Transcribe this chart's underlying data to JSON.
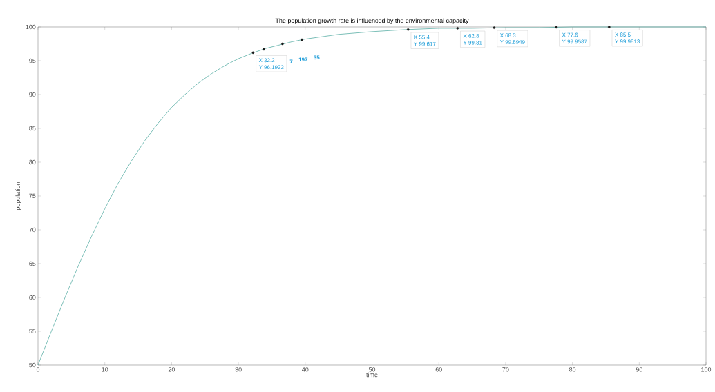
{
  "chart_data": {
    "type": "line",
    "title": "The population growth rate is influenced by the environmental capacity",
    "xlabel": "time",
    "ylabel": "population",
    "xlim": [
      0,
      100
    ],
    "xticks": [
      0,
      10,
      20,
      30,
      40,
      50,
      60,
      70,
      80,
      90,
      100
    ],
    "ylim": [
      50,
      100
    ],
    "yticks": [
      50,
      55,
      60,
      65,
      70,
      75,
      80,
      85,
      90,
      95,
      100
    ],
    "series": [
      {
        "color": "#5aaea6",
        "marker": "none",
        "x": [
          0,
          2,
          4,
          6,
          8,
          10,
          12,
          14,
          16,
          18,
          20,
          22,
          24,
          26,
          28,
          30,
          32,
          34,
          36,
          38,
          40,
          45,
          50,
          55,
          60,
          65,
          70,
          75,
          80,
          90,
          100
        ],
        "values": [
          50,
          55.0,
          59.9,
          64.6,
          69.0,
          73.1,
          76.9,
          80.2,
          83.2,
          85.8,
          88.1,
          90.0,
          91.7,
          93.1,
          94.3,
          95.3,
          96.1,
          96.8,
          97.3,
          97.8,
          98.2,
          98.9,
          99.3,
          99.6,
          99.8,
          99.8,
          99.9,
          99.9,
          100,
          100,
          100
        ]
      },
      {
        "type": "scatter",
        "color": "#1a1a1a",
        "marker": "circle",
        "x": [
          32.2,
          33.8,
          36.6,
          39.5,
          55.4,
          62.8,
          68.3,
          77.6,
          85.5
        ],
        "values": [
          96.1933,
          96.7,
          97.5,
          98.1,
          99.617,
          99.81,
          99.8949,
          99.9587,
          99.9813
        ]
      }
    ],
    "annotations": [
      {
        "text": "X 32.2",
        "x": 32.2,
        "y": 96.1933
      },
      {
        "text": "Y 96.1933",
        "x": 32.2,
        "y": 96.1933
      },
      "7",
      "197",
      "35",
      {
        "text": "X 55.4",
        "x": 55.4,
        "y": 99.617
      },
      {
        "text": "Y 99.617",
        "x": 55.4,
        "y": 99.617
      },
      {
        "text": "X 62.8",
        "x": 62.8,
        "y": 99.81
      },
      {
        "text": "Y 99.81",
        "x": 62.8,
        "y": 99.81
      },
      {
        "text": "X 68.3",
        "x": 68.3,
        "y": 99.8949
      },
      {
        "text": "Y 99.8949",
        "x": 68.3,
        "y": 99.8949
      },
      {
        "text": "X 77.6",
        "x": 77.6,
        "y": 99.9587
      },
      {
        "text": "Y 99.9587",
        "x": 77.6,
        "y": 99.9587
      },
      {
        "text": "X 85.5",
        "x": 85.5,
        "y": 99.9813
      },
      {
        "text": "Y 99.9813",
        "x": 85.5,
        "y": 99.9813
      }
    ]
  }
}
